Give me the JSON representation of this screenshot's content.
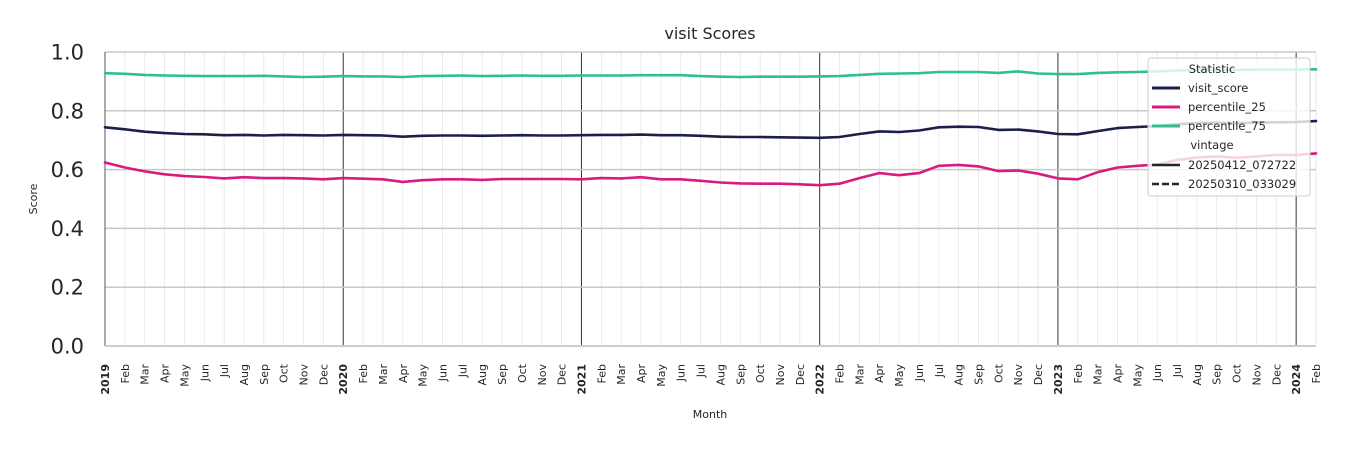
{
  "chart_data": {
    "type": "line",
    "title": "visit Scores",
    "xlabel": "Month",
    "ylabel": "Score",
    "ylim": [
      0,
      1
    ],
    "yticks": [
      "0.0",
      "0.2",
      "0.4",
      "0.6",
      "0.8",
      "1.0"
    ],
    "x_start": "2019-01",
    "x_end": "2024-02",
    "year_ticks": [
      "2019",
      "2020",
      "2021",
      "2022",
      "2023",
      "2024"
    ],
    "month_ticks": [
      "Feb",
      "Mar",
      "Apr",
      "May",
      "Jun",
      "Jul",
      "Aug",
      "Sep",
      "Oct",
      "Nov",
      "Dec"
    ],
    "legend": {
      "placement": "top-right",
      "hue_title": "Statistic",
      "style_title": "vintage",
      "style_entries": [
        {
          "name": "20250412_072722",
          "dash": "solid"
        },
        {
          "name": "20250310_033029",
          "dash": "dashed"
        }
      ]
    },
    "series": [
      {
        "name": "visit_score",
        "color": "#1b1f4b",
        "values": [
          0.744,
          0.737,
          0.729,
          0.724,
          0.721,
          0.72,
          0.717,
          0.718,
          0.716,
          0.718,
          0.717,
          0.716,
          0.718,
          0.717,
          0.716,
          0.712,
          0.715,
          0.716,
          0.716,
          0.715,
          0.716,
          0.717,
          0.716,
          0.716,
          0.717,
          0.718,
          0.718,
          0.719,
          0.717,
          0.717,
          0.715,
          0.712,
          0.711,
          0.711,
          0.71,
          0.709,
          0.708,
          0.711,
          0.721,
          0.73,
          0.728,
          0.733,
          0.744,
          0.746,
          0.745,
          0.735,
          0.736,
          0.73,
          0.721,
          0.72,
          0.731,
          0.741,
          0.745,
          0.748,
          0.754,
          0.758,
          0.76,
          0.757,
          0.76,
          0.761,
          0.762,
          0.765
        ]
      },
      {
        "name": "percentile_25",
        "color": "#d81b7f",
        "values": [
          0.624,
          0.607,
          0.594,
          0.584,
          0.578,
          0.575,
          0.57,
          0.574,
          0.571,
          0.571,
          0.57,
          0.567,
          0.571,
          0.569,
          0.567,
          0.558,
          0.564,
          0.567,
          0.567,
          0.565,
          0.568,
          0.568,
          0.568,
          0.568,
          0.567,
          0.571,
          0.57,
          0.574,
          0.567,
          0.567,
          0.562,
          0.556,
          0.553,
          0.552,
          0.552,
          0.55,
          0.547,
          0.552,
          0.571,
          0.588,
          0.581,
          0.588,
          0.613,
          0.616,
          0.611,
          0.595,
          0.597,
          0.586,
          0.57,
          0.567,
          0.591,
          0.607,
          0.613,
          0.617,
          0.633,
          0.641,
          0.645,
          0.64,
          0.645,
          0.65,
          0.65,
          0.655
        ]
      },
      {
        "name": "percentile_75",
        "color": "#2ec18f",
        "values": [
          0.928,
          0.926,
          0.922,
          0.92,
          0.919,
          0.918,
          0.918,
          0.918,
          0.919,
          0.917,
          0.915,
          0.916,
          0.918,
          0.917,
          0.917,
          0.915,
          0.918,
          0.919,
          0.92,
          0.918,
          0.919,
          0.92,
          0.919,
          0.919,
          0.92,
          0.92,
          0.92,
          0.921,
          0.921,
          0.921,
          0.918,
          0.916,
          0.915,
          0.916,
          0.916,
          0.916,
          0.917,
          0.918,
          0.922,
          0.926,
          0.927,
          0.928,
          0.932,
          0.932,
          0.932,
          0.929,
          0.934,
          0.927,
          0.925,
          0.925,
          0.929,
          0.931,
          0.932,
          0.934,
          0.937,
          0.939,
          0.939,
          0.939,
          0.94,
          0.94,
          0.94,
          0.941
        ]
      }
    ]
  }
}
